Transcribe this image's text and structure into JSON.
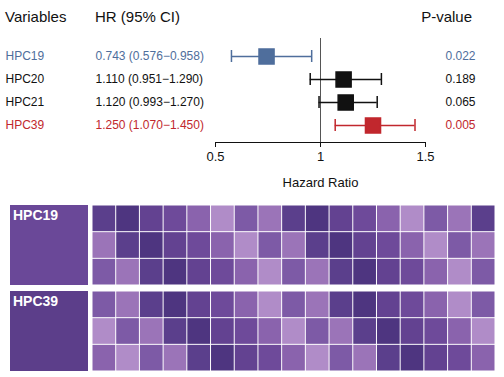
{
  "chart_data": {
    "type": "forest",
    "column_headers": [
      "Variables",
      "HR (95% CI)",
      "P-value"
    ],
    "categories": [
      "HPC19",
      "HPC20",
      "HPC21",
      "HPC39"
    ],
    "values": [
      0.743,
      1.11,
      1.12,
      1.25
    ],
    "ci_low": [
      0.576,
      0.951,
      0.993,
      1.07
    ],
    "ci_high": [
      0.958,
      1.29,
      1.27,
      1.45
    ],
    "hr_ci_labels": [
      "0.743 (0.576−0.958)",
      "1.110 (0.951−1.290)",
      "1.120 (0.993−1.270)",
      "1.250 (1.070−1.450)"
    ],
    "p_values": [
      0.022,
      0.189,
      0.065,
      0.005
    ],
    "colors": [
      "#4f6e9c",
      "#111111",
      "#111111",
      "#c1272d"
    ],
    "reference_line": 1,
    "xlabel": "Hazard Ratio",
    "xlim": [
      0.5,
      1.5
    ],
    "xticks": [
      0.5,
      1,
      1.5
    ],
    "marker": "square",
    "image_panels": [
      {
        "label": "HPC19"
      },
      {
        "label": "HPC39"
      }
    ]
  }
}
